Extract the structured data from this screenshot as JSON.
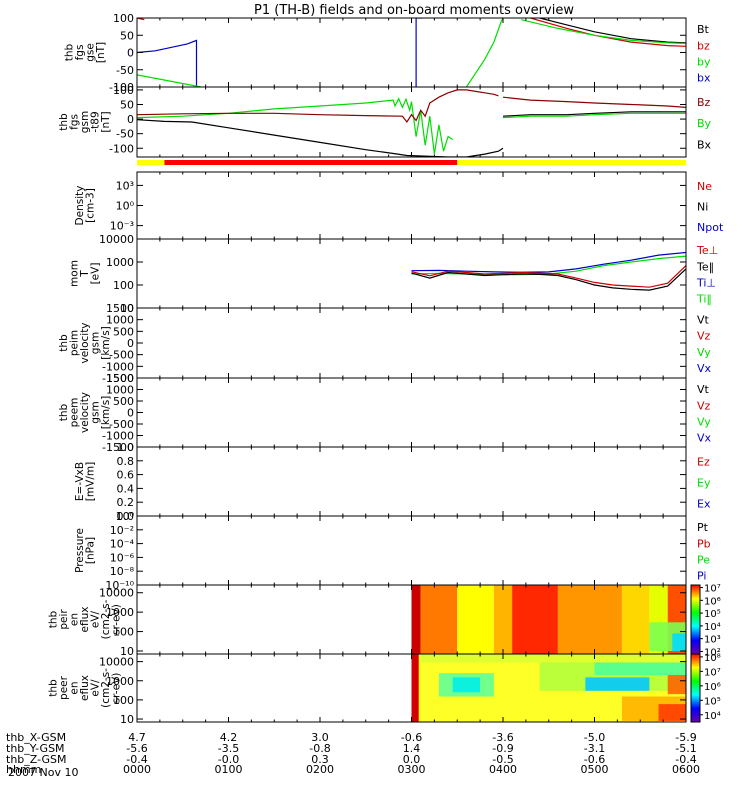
{
  "title": "P1 (TH-B) fields and on-board moments overview",
  "date": "2007 Nov 10",
  "colors": {
    "black": "#000000",
    "red": "#cc0000",
    "green": "#00dd00",
    "blue": "#0000cc",
    "darkred": "#8b0000",
    "yellow": "#ffff00",
    "barred": "#ff0000"
  },
  "chart_data": [
    {
      "type": "line",
      "panel_name": "fgs-gse",
      "ylabel_lines": [
        "thb",
        "fgs",
        "gse",
        "[nT]"
      ],
      "ylim": [
        -100,
        100
      ],
      "y_ticks": [
        "100",
        "50",
        "0",
        "-50",
        "-100"
      ],
      "legend": [
        {
          "label": "Bt",
          "color": "#000000"
        },
        {
          "label": "bz",
          "color": "#cc0000"
        },
        {
          "label": "by",
          "color": "#00dd00"
        },
        {
          "label": "bx",
          "color": "#0000cc"
        }
      ],
      "series": [
        {
          "name": "bx",
          "color": "#0000cc",
          "x": [
            0,
            0.2,
            0.55,
            0.65,
            0.65
          ],
          "y": [
            0,
            5,
            25,
            35,
            -100
          ]
        },
        {
          "name": "by",
          "color": "#00dd00",
          "x": [
            0,
            0.7
          ],
          "y": [
            -65,
            -100
          ]
        },
        {
          "name": "bz",
          "color": "#cc0000",
          "x": [
            0,
            0.08
          ],
          "y": [
            100,
            95
          ]
        },
        {
          "name": "bx",
          "color": "#0000cc",
          "x": [
            3.05,
            3.05,
            3.12
          ],
          "y": [
            -100,
            100,
            100
          ]
        },
        {
          "name": "by",
          "color": "#00dd00",
          "x": [
            3.6,
            3.7,
            3.8,
            3.9,
            3.98,
            4.0
          ],
          "y": [
            -100,
            -60,
            -20,
            30,
            90,
            100
          ]
        },
        {
          "name": "Bt",
          "color": "#000000",
          "x": [
            4.4,
            4.7,
            5.0,
            5.4,
            5.8,
            6.0
          ],
          "y": [
            100,
            80,
            60,
            40,
            30,
            28
          ]
        },
        {
          "name": "bz",
          "color": "#cc0000",
          "x": [
            4.3,
            4.7,
            5.0,
            5.4,
            5.8,
            6.0
          ],
          "y": [
            100,
            70,
            50,
            30,
            20,
            18
          ]
        },
        {
          "name": "by",
          "color": "#00dd00",
          "x": [
            4.2,
            4.6,
            5.0,
            5.4,
            5.8,
            6.0
          ],
          "y": [
            95,
            70,
            50,
            35,
            28,
            26
          ]
        }
      ]
    },
    {
      "type": "line",
      "panel_name": "fgs-gsm",
      "ylabel_lines": [
        "thb",
        "fgs",
        "gsm",
        "-t89",
        "[nT]"
      ],
      "ylim": [
        -130,
        110
      ],
      "y_ticks": [
        "100",
        "50",
        "0",
        "-50",
        "-100"
      ],
      "y_tick_values": [
        100,
        50,
        0,
        -50,
        -100
      ],
      "legend": [
        {
          "label": "Bz",
          "color": "#8b0000"
        },
        {
          "label": "By",
          "color": "#00dd00"
        },
        {
          "label": "Bx",
          "color": "#000000"
        }
      ],
      "series": [
        {
          "name": "Bx",
          "color": "#000000",
          "x": [
            0,
            0.3,
            0.6,
            1.0,
            1.5,
            2.0,
            2.5,
            2.85,
            2.95,
            3.4,
            3.6,
            3.8,
            3.95,
            4.0
          ],
          "y": [
            -2,
            -8,
            -10,
            -30,
            -55,
            -80,
            -105,
            -120,
            -125,
            -130,
            -130,
            -120,
            -110,
            -100
          ]
        },
        {
          "name": "By",
          "color": "#00dd00",
          "x": [
            0,
            0.5,
            1.0,
            1.5,
            2.0,
            2.5,
            2.8,
            2.82,
            2.86,
            2.9,
            2.94,
            2.98,
            3.0,
            3.05,
            3.1,
            3.15,
            3.2,
            3.25,
            3.3,
            3.35,
            3.4,
            3.45
          ],
          "y": [
            5,
            10,
            20,
            35,
            45,
            55,
            65,
            45,
            70,
            40,
            68,
            30,
            60,
            -60,
            30,
            -90,
            10,
            -120,
            -20,
            -110,
            -60,
            -70
          ]
        },
        {
          "name": "Bz",
          "color": "#8b0000",
          "x": [
            0,
            0.5,
            1.0,
            1.5,
            2.0,
            2.5,
            2.9,
            2.95,
            3.0,
            3.05,
            3.1,
            3.15,
            3.2,
            3.3,
            3.4,
            3.5,
            3.6,
            3.7,
            3.8,
            3.9,
            3.95
          ],
          "y": [
            15,
            18,
            20,
            20,
            15,
            12,
            10,
            -10,
            15,
            -5,
            30,
            10,
            55,
            75,
            90,
            100,
            100,
            95,
            90,
            85,
            80
          ]
        },
        {
          "name": "Bx",
          "color": "#000000",
          "x": [
            4.0,
            4.3,
            4.7,
            5.0,
            5.4,
            5.8,
            6.0
          ],
          "y": [
            10,
            15,
            15,
            20,
            25,
            25,
            25
          ]
        },
        {
          "name": "By",
          "color": "#00dd00",
          "x": [
            4.0,
            4.3,
            4.7,
            5.0,
            5.4,
            5.8,
            6.0
          ],
          "y": [
            5,
            10,
            10,
            15,
            20,
            20,
            20
          ]
        },
        {
          "name": "Bz",
          "color": "#8b0000",
          "x": [
            4.0,
            4.3,
            4.7,
            5.0,
            5.4,
            5.8,
            6.0
          ],
          "y": [
            75,
            65,
            60,
            55,
            50,
            45,
            40
          ]
        }
      ],
      "mode_bar": {
        "segments": [
          {
            "from": 0,
            "to": 0.3,
            "color": "#ffff00"
          },
          {
            "from": 0.3,
            "to": 3.5,
            "color": "#ff0000"
          },
          {
            "from": 3.5,
            "to": 6.0,
            "color": "#ffff00"
          }
        ]
      }
    },
    {
      "type": "line",
      "panel_name": "density",
      "ylabel_lines": [
        "Density",
        "[cm-3]"
      ],
      "ylog": true,
      "ylim": [
        1e-05,
        100000
      ],
      "y_ticks": [
        "10³",
        "10⁰",
        "10⁻³"
      ],
      "y_tick_values": [
        1000,
        1,
        0.001
      ],
      "legend": [
        {
          "label": "Ne",
          "color": "#cc0000"
        },
        {
          "label": "Ni",
          "color": "#000000"
        },
        {
          "label": "Npot",
          "color": "#0000cc"
        }
      ],
      "series": []
    },
    {
      "type": "line",
      "panel_name": "temperature",
      "ylabel_lines": [
        "mom",
        "T",
        "[eV]"
      ],
      "ylog": true,
      "ylim": [
        10,
        10000
      ],
      "y_ticks": [
        "10000",
        "1000",
        "100",
        "10"
      ],
      "y_tick_values": [
        10000,
        1000,
        100,
        10
      ],
      "legend": [
        {
          "label": "Te⊥",
          "color": "#cc0000"
        },
        {
          "label": "Te‖",
          "color": "#000000"
        },
        {
          "label": "Ti⊥",
          "color": "#0000cc"
        },
        {
          "label": "Ti‖",
          "color": "#00dd00"
        }
      ],
      "series": [
        {
          "name": "Ti⊥",
          "color": "#0000cc",
          "x": [
            3.0,
            3.3,
            3.6,
            3.9,
            4.2,
            4.5,
            4.8,
            5.1,
            5.4,
            5.7,
            6.0
          ],
          "y": [
            420,
            430,
            400,
            370,
            360,
            370,
            500,
            800,
            1200,
            2000,
            2600
          ]
        },
        {
          "name": "Ti‖",
          "color": "#00dd00",
          "x": [
            3.0,
            3.3,
            3.6,
            3.9,
            4.2,
            4.5,
            4.8,
            5.1,
            5.4,
            5.7,
            6.0
          ],
          "y": [
            300,
            320,
            300,
            280,
            280,
            300,
            400,
            700,
            1000,
            1400,
            1800
          ]
        },
        {
          "name": "Te⊥",
          "color": "#cc0000",
          "x": [
            3.0,
            3.2,
            3.4,
            3.6,
            3.8,
            4.0,
            4.2,
            4.4,
            4.6,
            4.8,
            5.0,
            5.2,
            5.4,
            5.6,
            5.8,
            6.0
          ],
          "y": [
            380,
            250,
            400,
            350,
            300,
            320,
            350,
            330,
            300,
            200,
            130,
            100,
            90,
            80,
            120,
            700
          ]
        },
        {
          "name": "Te‖",
          "color": "#000000",
          "x": [
            3.0,
            3.2,
            3.4,
            3.6,
            3.8,
            4.0,
            4.2,
            4.4,
            4.6,
            4.8,
            5.0,
            5.2,
            5.4,
            5.6,
            5.8,
            6.0
          ],
          "y": [
            330,
            200,
            350,
            300,
            260,
            280,
            300,
            290,
            260,
            170,
            100,
            75,
            65,
            60,
            90,
            500
          ]
        }
      ]
    },
    {
      "type": "line",
      "panel_name": "peim-velocity",
      "ylabel_lines": [
        "thb",
        "peim",
        "velocity",
        "gsm",
        "[km/s]"
      ],
      "ylim": [
        -1500,
        1500
      ],
      "y_ticks": [
        "1500",
        "1000",
        "500",
        "0",
        "-500",
        "-1000",
        "-1500"
      ],
      "y_tick_values": [
        1500,
        1000,
        500,
        0,
        -500,
        -1000,
        -1500
      ],
      "legend": [
        {
          "label": "Vt",
          "color": "#000000"
        },
        {
          "label": "Vz",
          "color": "#cc0000"
        },
        {
          "label": "Vy",
          "color": "#00dd00"
        },
        {
          "label": "Vx",
          "color": "#0000cc"
        }
      ],
      "series": []
    },
    {
      "type": "line",
      "panel_name": "peem-velocity",
      "ylabel_lines": [
        "thb",
        "peem",
        "velocity",
        "gsm",
        "[km/s]"
      ],
      "ylim": [
        -1500,
        1500
      ],
      "y_ticks": [
        "1500",
        "1000",
        "500",
        "0",
        "-500",
        "-1000",
        "-1500"
      ],
      "y_tick_values": [
        1500,
        1000,
        500,
        0,
        -500,
        -1000,
        -1500
      ],
      "legend": [
        {
          "label": "Vt",
          "color": "#000000"
        },
        {
          "label": "Vz",
          "color": "#cc0000"
        },
        {
          "label": "Vy",
          "color": "#00dd00"
        },
        {
          "label": "Vx",
          "color": "#0000cc"
        }
      ],
      "series": []
    },
    {
      "type": "line",
      "panel_name": "e-field",
      "ylabel_lines": [
        "E=-VxB",
        "[mV/m]"
      ],
      "ylim": [
        0,
        1
      ],
      "y_ticks": [
        "1.0",
        "0.8",
        "0.6",
        "0.4",
        "0.2",
        "0.0"
      ],
      "y_tick_values": [
        1.0,
        0.8,
        0.6,
        0.4,
        0.2,
        0.0
      ],
      "legend": [
        {
          "label": "Ez",
          "color": "#cc0000"
        },
        {
          "label": "Ey",
          "color": "#00dd00"
        },
        {
          "label": "Ex",
          "color": "#0000cc"
        }
      ],
      "series": []
    },
    {
      "type": "line",
      "panel_name": "pressure",
      "ylabel_lines": [
        "Pressure",
        "[nPa]"
      ],
      "ylog": true,
      "ylim": [
        1e-10,
        1
      ],
      "y_ticks": [
        "10⁰",
        "10⁻²",
        "10⁻⁴",
        "10⁻⁶",
        "10⁻⁸",
        "10⁻¹⁰"
      ],
      "y_tick_values": [
        1,
        0.01,
        0.0001,
        1e-06,
        1e-08,
        1e-10
      ],
      "legend": [
        {
          "label": "Pt",
          "color": "#000000"
        },
        {
          "label": "Pb",
          "color": "#cc0000"
        },
        {
          "label": "Pe",
          "color": "#00dd00"
        },
        {
          "label": "Pi",
          "color": "#0000cc"
        }
      ],
      "series": []
    },
    {
      "type": "heatmap",
      "panel_name": "peir-spectrogram",
      "ylabel_lines": [
        "thb",
        "peir",
        "en",
        "eflux",
        "eV/",
        "(cm2-s-",
        "sr-eV)"
      ],
      "ylog": true,
      "ylim": [
        7,
        25000
      ],
      "y_ticks": [
        "10000",
        "1000",
        "100",
        "10"
      ],
      "y_tick_values": [
        10000,
        1000,
        100,
        10
      ],
      "colorbar_ticks": [
        "10⁷",
        "10⁶",
        "10⁵",
        "10⁴",
        "10³",
        "10²"
      ],
      "colorbar_tick_values": [
        7,
        6,
        5,
        4,
        3,
        2
      ],
      "colorbar_range": [
        1.8,
        7.2
      ],
      "columns": [
        {
          "from": 3.0,
          "to": 3.1,
          "color": "#c80000"
        },
        {
          "from": 3.1,
          "to": 3.5,
          "color": "#ff7800"
        },
        {
          "from": 3.5,
          "to": 3.9,
          "color": "#ffff00"
        },
        {
          "from": 3.9,
          "to": 4.1,
          "color": "#ffb400"
        },
        {
          "from": 4.1,
          "to": 4.6,
          "color": "#ff2800"
        },
        {
          "from": 4.6,
          "to": 5.3,
          "color": "#ff9600"
        },
        {
          "from": 5.3,
          "to": 5.6,
          "color": "#ffd700"
        },
        {
          "from": 5.6,
          "to": 5.8,
          "color": "#e6ff00"
        },
        {
          "from": 5.8,
          "to": 6.0,
          "color": "#ff5000"
        }
      ],
      "patches": [
        {
          "x0": 5.6,
          "x1": 6.0,
          "y0": 10,
          "y1": 300,
          "color": "#7dff50"
        },
        {
          "x0": 5.85,
          "x1": 6.0,
          "y0": 10,
          "y1": 80,
          "color": "#00dcff"
        }
      ]
    },
    {
      "type": "heatmap",
      "panel_name": "peer-spectrogram",
      "ylabel_lines": [
        "thb",
        "peer",
        "en",
        "eflux",
        "eV/",
        "(cm2-s-",
        "sr-eV)"
      ],
      "ylog": true,
      "ylim": [
        7,
        25000
      ],
      "y_ticks": [
        "10000",
        "1000",
        "100",
        "10"
      ],
      "y_tick_values": [
        10000,
        1000,
        100,
        10
      ],
      "colorbar_ticks": [
        "10⁸",
        "10⁷",
        "10⁶",
        "10⁵",
        "10⁴"
      ],
      "colorbar_tick_values": [
        8,
        7,
        6,
        5,
        4
      ],
      "colorbar_range": [
        3.5,
        8.2
      ],
      "columns": [
        {
          "from": 3.0,
          "to": 3.08,
          "color": "#d20000"
        },
        {
          "from": 3.08,
          "to": 6.0,
          "color": "#ffff28"
        }
      ],
      "patches": [
        {
          "x0": 3.1,
          "x1": 6.0,
          "y0": 9000,
          "y1": 25000,
          "color": "#dcff32"
        },
        {
          "x0": 3.3,
          "x1": 3.9,
          "y0": 150,
          "y1": 2500,
          "color": "#64ff96"
        },
        {
          "x0": 3.45,
          "x1": 3.75,
          "y0": 250,
          "y1": 1500,
          "color": "#00f0e6"
        },
        {
          "x0": 4.4,
          "x1": 6.0,
          "y0": 300,
          "y1": 9000,
          "color": "#b4ff3c"
        },
        {
          "x0": 5.0,
          "x1": 6.0,
          "y0": 2000,
          "y1": 9000,
          "color": "#50ff96"
        },
        {
          "x0": 4.9,
          "x1": 5.6,
          "y0": 300,
          "y1": 1500,
          "color": "#00c8ff"
        },
        {
          "x0": 5.3,
          "x1": 6.0,
          "y0": 8,
          "y1": 150,
          "color": "#ffb400"
        },
        {
          "x0": 5.7,
          "x1": 6.0,
          "y0": 8,
          "y1": 60,
          "color": "#ff3c00"
        },
        {
          "x0": 5.8,
          "x1": 6.0,
          "y0": 200,
          "y1": 2000,
          "color": "#ff6400"
        }
      ]
    }
  ],
  "x_axis": {
    "ticks": [
      0,
      1,
      2,
      3,
      4,
      5,
      6
    ],
    "row_labels": [
      "thb_X-GSM",
      "thb_Y-GSM",
      "thb_Z-GSM",
      "hhmm"
    ],
    "rows": [
      [
        "4.7",
        "4.2",
        "3.0",
        "-0.6",
        "-3.6",
        "-5.0",
        "-5.9"
      ],
      [
        "-5.6",
        "-3.5",
        "-0.8",
        "1.4",
        "-0.9",
        "-3.1",
        "-5.1"
      ],
      [
        "-0.4",
        "-0.0",
        "0.3",
        "0.0",
        "-0.5",
        "-0.6",
        "-0.4"
      ],
      [
        "0000",
        "0100",
        "0200",
        "0300",
        "0400",
        "0500",
        "0600"
      ]
    ]
  }
}
